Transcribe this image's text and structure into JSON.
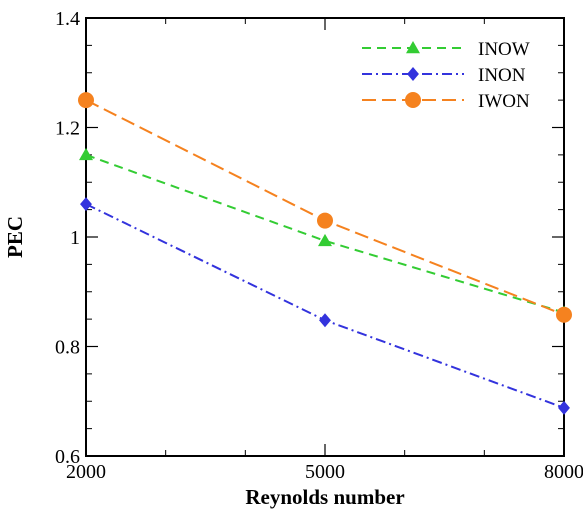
{
  "chart_data": {
    "type": "line",
    "title": "",
    "xlabel": "Reynolds number",
    "ylabel": "PEC",
    "x": [
      2000,
      5000,
      8000
    ],
    "xlim": [
      2000,
      8000
    ],
    "ylim": [
      0.6,
      1.4
    ],
    "x_ticks": [
      "2000",
      "5000",
      "8000"
    ],
    "y_ticks": [
      "0.6",
      "0.8",
      "1",
      "1.2",
      "1.4"
    ],
    "grid": false,
    "legend_position": "top-right",
    "series": [
      {
        "name": "INOW",
        "values": [
          1.15,
          0.993,
          0.862
        ],
        "color": "#33cc33",
        "marker": "triangle",
        "line_style": "dashed"
      },
      {
        "name": "INON",
        "values": [
          1.06,
          0.848,
          0.688
        ],
        "color": "#3333dd",
        "marker": "diamond",
        "line_style": "dash-dot"
      },
      {
        "name": "IWON",
        "values": [
          1.25,
          1.03,
          0.858
        ],
        "color": "#f5821f",
        "marker": "circle",
        "line_style": "long-dash"
      }
    ]
  }
}
